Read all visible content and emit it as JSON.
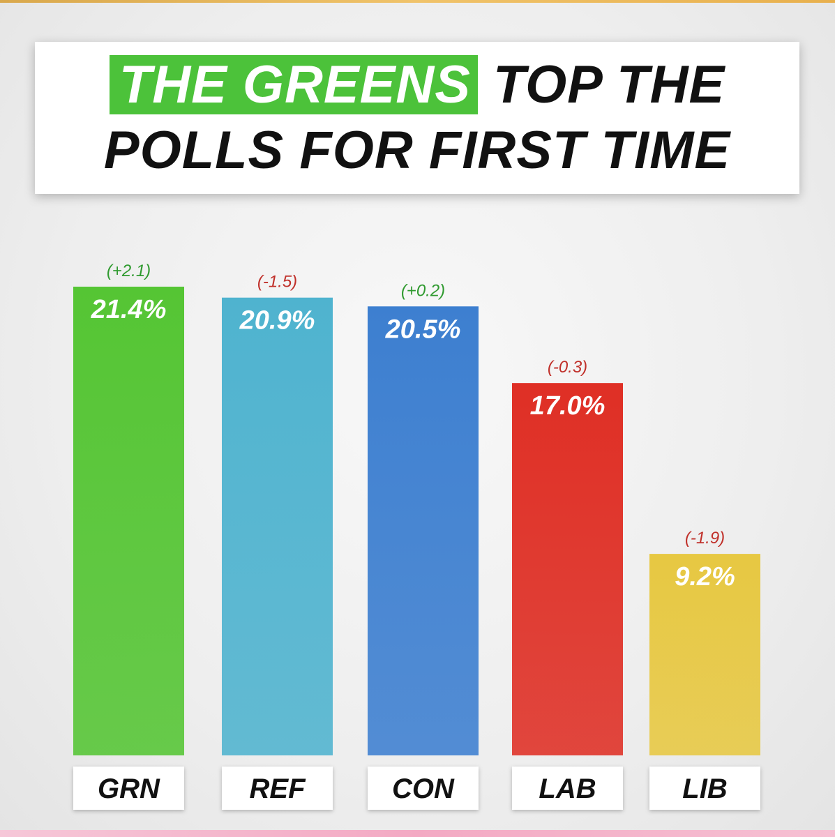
{
  "title": {
    "highlight": "THE GREENS",
    "rest_line1": "TOP THE",
    "line2": "POLLS FOR FIRST TIME",
    "highlight_color": "#4cc23a"
  },
  "chart_data": {
    "type": "bar",
    "categories": [
      "GRN",
      "REF",
      "CON",
      "LAB",
      "LIB"
    ],
    "values": [
      21.4,
      20.9,
      20.5,
      17.0,
      9.2
    ],
    "value_labels": [
      "21.4%",
      "20.9%",
      "20.5%",
      "17.0%",
      "9.2%"
    ],
    "changes": [
      "(+2.1)",
      "(-1.5)",
      "(+0.2)",
      "(-0.3)",
      "(-1.9)"
    ],
    "colors": [
      "#55c534",
      "#4fb3cf",
      "#3d7fd0",
      "#df2f25",
      "#e7c842"
    ],
    "change_colors": [
      "#2f9a2f",
      "#c0302a",
      "#2f9a2f",
      "#c0302a",
      "#c0302a"
    ],
    "title": "THE GREENS TOP THE POLLS FOR FIRST TIME",
    "xlabel": "",
    "ylabel": "",
    "ylim": [
      0,
      21.4
    ],
    "grid": false,
    "legend": "none"
  }
}
